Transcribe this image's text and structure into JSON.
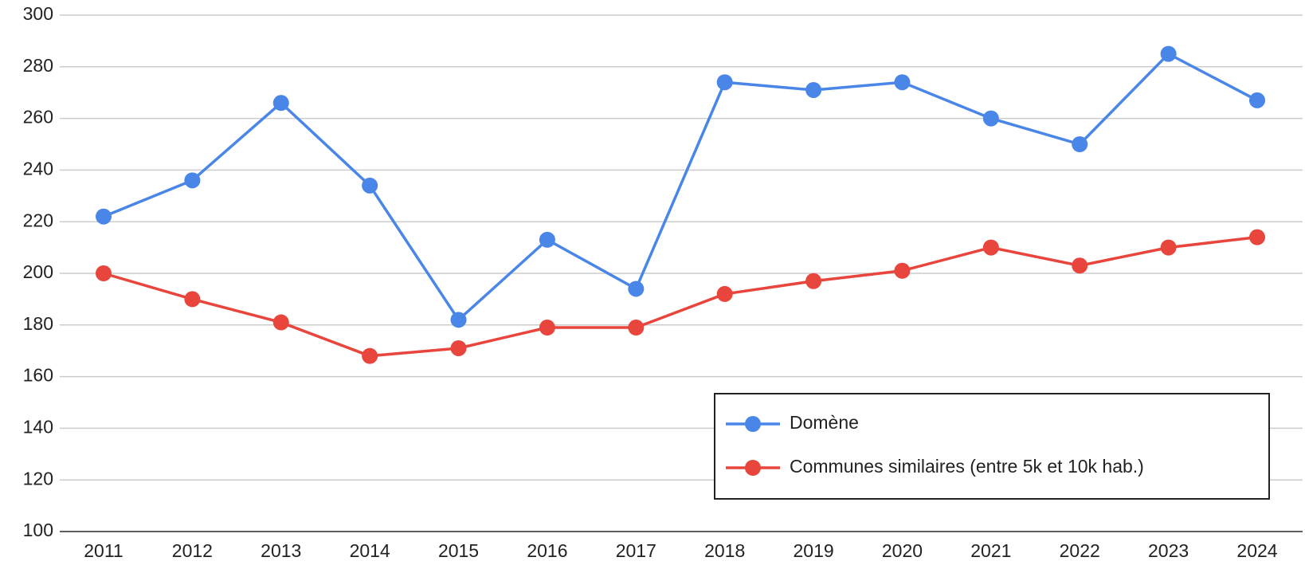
{
  "chart_data": {
    "type": "line",
    "categories": [
      "2011",
      "2012",
      "2013",
      "2014",
      "2015",
      "2016",
      "2017",
      "2018",
      "2019",
      "2020",
      "2021",
      "2022",
      "2023",
      "2024"
    ],
    "series": [
      {
        "name": "Domène",
        "color": "#4a86e8",
        "values": [
          222,
          236,
          266,
          234,
          182,
          213,
          194,
          274,
          271,
          274,
          260,
          250,
          285,
          267
        ]
      },
      {
        "name": "Communes similaires (entre 5k et 10k hab.)",
        "color": "#e8453c",
        "values": [
          200,
          190,
          181,
          168,
          171,
          179,
          179,
          192,
          197,
          201,
          210,
          203,
          210,
          214
        ]
      }
    ],
    "ylim": [
      100,
      300
    ],
    "yticks": [
      100,
      120,
      140,
      160,
      180,
      200,
      220,
      240,
      260,
      280,
      300
    ],
    "grid": true,
    "legend": "bottom-right"
  }
}
